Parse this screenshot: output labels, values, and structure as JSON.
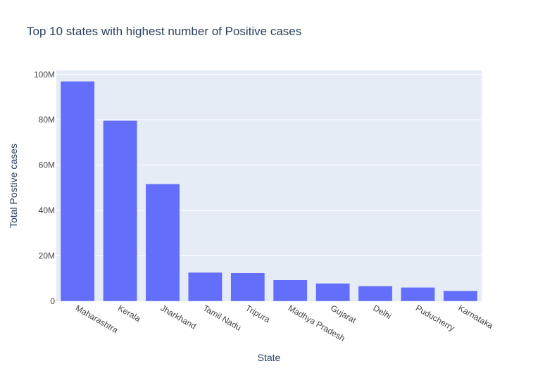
{
  "chart_data": {
    "type": "bar",
    "title": "Top 10 states with highest number of Positive cases",
    "xlabel": "State",
    "ylabel": "Total Postive cases",
    "categories": [
      "Maharashtra",
      "Kerala",
      "Jharkhand",
      "Tamil Nadu",
      "Tripura",
      "Madhya Pradesh",
      "Gujarat",
      "Delhi",
      "Puducherry",
      "Karnataka"
    ],
    "values": [
      97000000,
      79700000,
      51700000,
      12700000,
      12500000,
      9400000,
      7900000,
      6700000,
      6100000,
      4600000
    ],
    "ylim": [
      0,
      101800000
    ],
    "yticks": [
      0,
      20000000,
      40000000,
      60000000,
      80000000,
      100000000
    ],
    "ytick_labels": [
      "0",
      "20M",
      "40M",
      "60M",
      "80M",
      "100M"
    ],
    "grid": true,
    "colors": {
      "bar": "#636efa",
      "plot_bg": "#e5ecf6",
      "grid": "#ffffff",
      "text": "#2a3f5f",
      "tick_text": "#444444"
    }
  }
}
